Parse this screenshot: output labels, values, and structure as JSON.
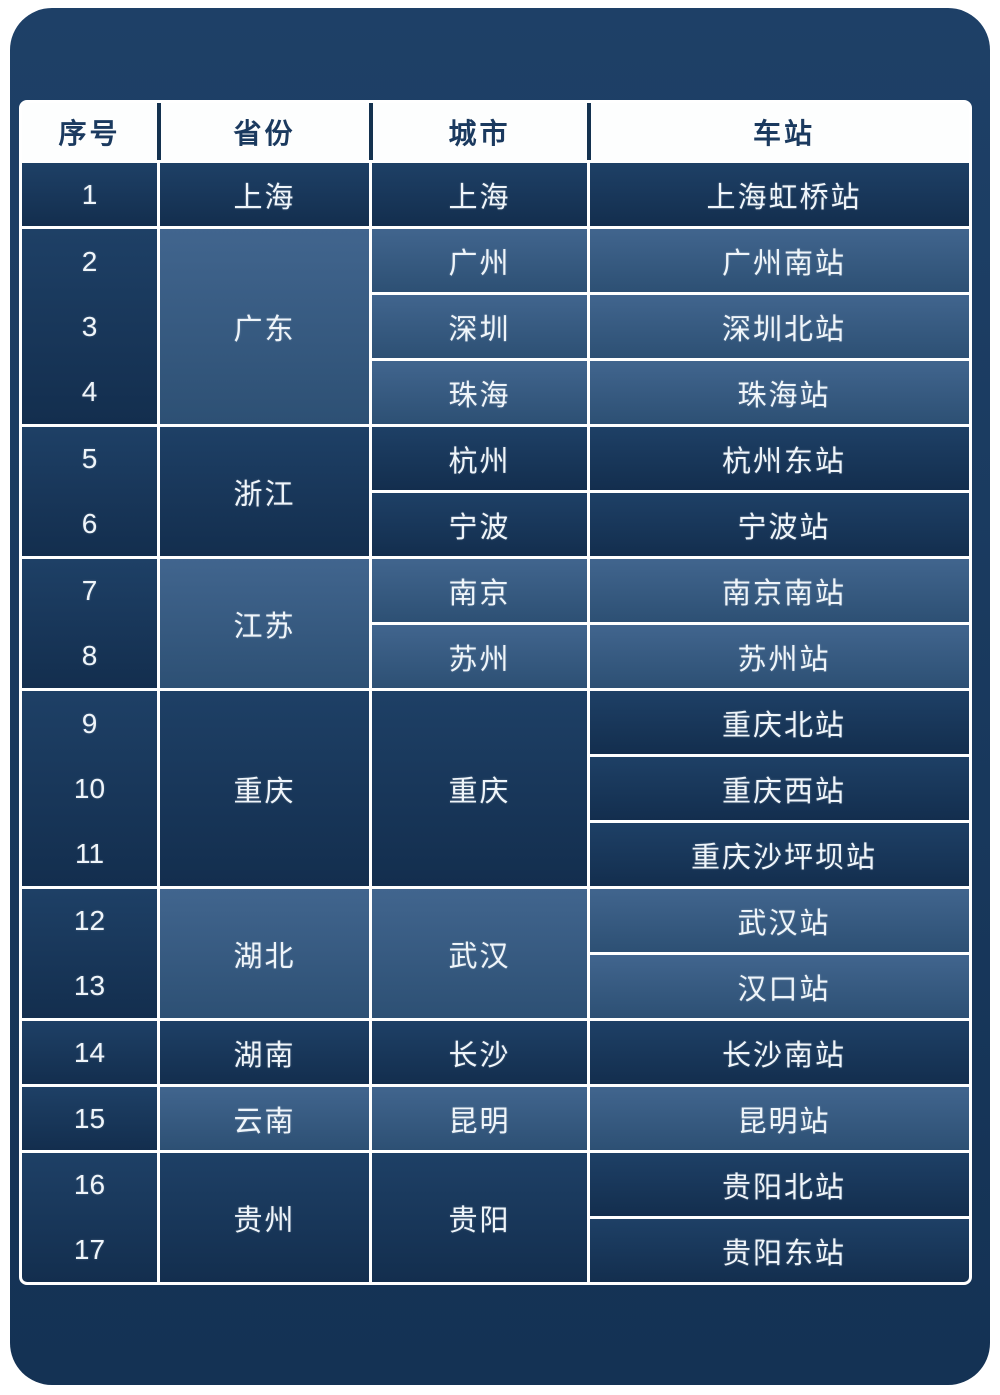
{
  "header": {
    "cols": [
      "序号",
      "省份",
      "城市",
      "车站"
    ]
  },
  "groups": [
    {
      "province": "上海",
      "shade": "dark",
      "nums": [
        "1"
      ],
      "cities": [
        "上海"
      ],
      "stations": [
        "上海虹桥站"
      ]
    },
    {
      "province": "广东",
      "shade": "light",
      "nums": [
        "2",
        "3",
        "4"
      ],
      "cities": [
        "广州",
        "深圳",
        "珠海"
      ],
      "stations": [
        "广州南站",
        "深圳北站",
        "珠海站"
      ]
    },
    {
      "province": "浙江",
      "shade": "dark",
      "nums": [
        "5",
        "6"
      ],
      "cities": [
        "杭州",
        "宁波"
      ],
      "stations": [
        "杭州东站",
        "宁波站"
      ]
    },
    {
      "province": "江苏",
      "shade": "light",
      "nums": [
        "7",
        "8"
      ],
      "cities": [
        "南京",
        "苏州"
      ],
      "stations": [
        "南京南站",
        "苏州站"
      ]
    },
    {
      "province": "重庆",
      "shade": "dark",
      "nums": [
        "9",
        "10",
        "11"
      ],
      "cities": [
        "重庆"
      ],
      "stations": [
        "重庆北站",
        "重庆西站",
        "重庆沙坪坝站"
      ]
    },
    {
      "province": "湖北",
      "shade": "light",
      "nums": [
        "12",
        "13"
      ],
      "cities": [
        "武汉"
      ],
      "stations": [
        "武汉站",
        "汉口站"
      ]
    },
    {
      "province": "湖南",
      "shade": "dark",
      "nums": [
        "14"
      ],
      "cities": [
        "长沙"
      ],
      "stations": [
        "长沙南站"
      ]
    },
    {
      "province": "云南",
      "shade": "light",
      "nums": [
        "15"
      ],
      "cities": [
        "昆明"
      ],
      "stations": [
        "昆明站"
      ]
    },
    {
      "province": "贵州",
      "shade": "dark",
      "nums": [
        "16",
        "17"
      ],
      "cities": [
        "贵阳"
      ],
      "stations": [
        "贵阳北站",
        "贵阳东站"
      ]
    }
  ],
  "colors": {
    "container": "#1B3C63",
    "dark_cell": "#17355A",
    "light_cell": "#34587D",
    "header_bg": "#FDFEFE",
    "header_text": "#1B3A5F",
    "grid_line": "#FFFFFF",
    "cell_text": "#EFF5FA"
  },
  "chart_data": {
    "type": "table",
    "columns": [
      "序号",
      "省份",
      "城市",
      "车站"
    ],
    "rows": [
      [
        "1",
        "上海",
        "上海",
        "上海虹桥站"
      ],
      [
        "2",
        "广东",
        "广州",
        "广州南站"
      ],
      [
        "3",
        "广东",
        "深圳",
        "深圳北站"
      ],
      [
        "4",
        "广东",
        "珠海",
        "珠海站"
      ],
      [
        "5",
        "浙江",
        "杭州",
        "杭州东站"
      ],
      [
        "6",
        "浙江",
        "宁波",
        "宁波站"
      ],
      [
        "7",
        "江苏",
        "南京",
        "南京南站"
      ],
      [
        "8",
        "江苏",
        "苏州",
        "苏州站"
      ],
      [
        "9",
        "重庆",
        "重庆",
        "重庆北站"
      ],
      [
        "10",
        "重庆",
        "重庆",
        "重庆西站"
      ],
      [
        "11",
        "重庆",
        "重庆",
        "重庆沙坪坝站"
      ],
      [
        "12",
        "湖北",
        "武汉",
        "武汉站"
      ],
      [
        "13",
        "湖北",
        "武汉",
        "汉口站"
      ],
      [
        "14",
        "湖南",
        "长沙",
        "长沙南站"
      ],
      [
        "15",
        "云南",
        "昆明",
        "昆明站"
      ],
      [
        "16",
        "贵州",
        "贵阳",
        "贵阳北站"
      ],
      [
        "17",
        "贵州",
        "贵阳",
        "贵阳东站"
      ]
    ]
  }
}
